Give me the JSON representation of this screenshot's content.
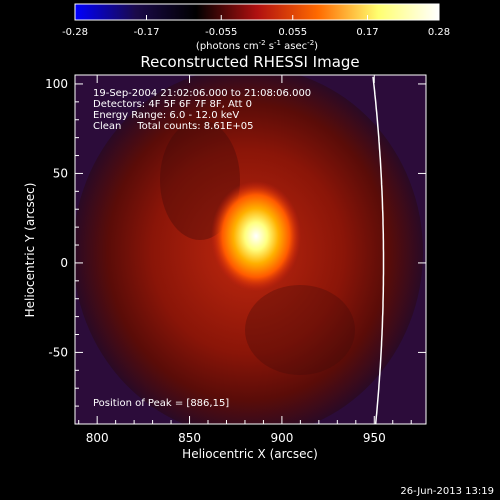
{
  "chart_data": {
    "type": "heatmap",
    "title": "Reconstructed RHESSI Image",
    "xlabel": "Heliocentric X (arcsec)",
    "ylabel": "Heliocentric Y (arcsec)",
    "xlim": [
      788,
      978
    ],
    "ylim": [
      -90,
      105
    ],
    "xticks": [
      800,
      850,
      900,
      950
    ],
    "yticks": [
      -50,
      0,
      50,
      100
    ],
    "colorbar": {
      "label": "(photons cm-2 s-1 asec-2)",
      "range": [
        -0.28,
        0.28
      ],
      "ticks": [
        -0.28,
        -0.17,
        -0.055,
        0.055,
        0.17,
        0.28
      ],
      "tick_labels": [
        "-0.28",
        "-0.17",
        "-0.055",
        "0.055",
        "0.17",
        "0.28"
      ],
      "colors": [
        "#0000ff",
        "#1a0a4a",
        "#000000",
        "#b01010",
        "#ff6a00",
        "#ffff70",
        "#ffffff"
      ]
    },
    "annotations": [
      "19-Sep-2004 21:02:06.000 to 21:08:06.000",
      "Detectors: 4F 5F 6F 7F 8F, Att 0",
      "Energy Range: 6.0 - 12.0 keV",
      "Clean     Total counts: 8.61E+05"
    ],
    "peak_label": "Position of Peak = [886,15]",
    "peak": {
      "x": 886,
      "y": 15,
      "value": 0.28
    },
    "limb": {
      "center_x": 0,
      "center_y": 0,
      "radius_arcsec": 955
    },
    "grid": false
  },
  "footer": {
    "timestamp": "26-Jun-2013 13:19"
  }
}
